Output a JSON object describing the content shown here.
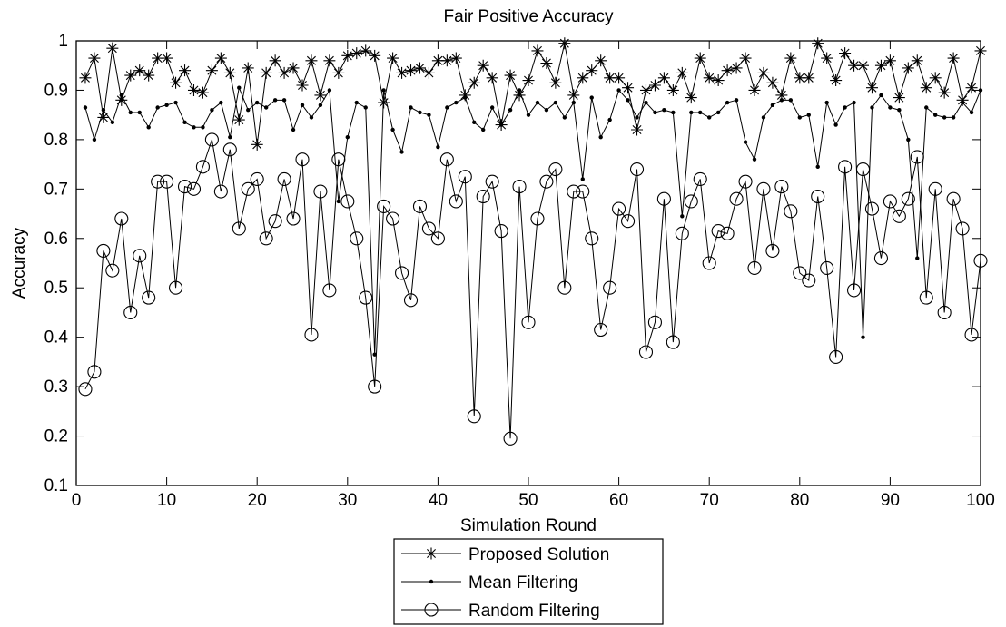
{
  "chart_data": {
    "type": "line",
    "title": "Fair Positive Accuracy",
    "xlabel": "Simulation Round",
    "ylabel": "Accuracy",
    "xlim": [
      0,
      100
    ],
    "ylim": [
      0.1,
      1.0
    ],
    "x_ticks": [
      0,
      10,
      20,
      30,
      40,
      50,
      60,
      70,
      80,
      90,
      100
    ],
    "x_tick_labels": [
      "0",
      "10",
      "20",
      "30",
      "40",
      "50",
      "60",
      "70",
      "80",
      "90",
      "100"
    ],
    "y_ticks": [
      0.1,
      0.2,
      0.3,
      0.4,
      0.5,
      0.6,
      0.7,
      0.8,
      0.9,
      1.0
    ],
    "y_tick_labels": [
      "0.1",
      "0.2",
      "0.3",
      "0.4",
      "0.5",
      "0.6",
      "0.7",
      "0.8",
      "0.9",
      "1"
    ],
    "grid": false,
    "legend_position": "below plot",
    "x": [
      1,
      2,
      3,
      4,
      5,
      6,
      7,
      8,
      9,
      10,
      11,
      12,
      13,
      14,
      15,
      16,
      17,
      18,
      19,
      20,
      21,
      22,
      23,
      24,
      25,
      26,
      27,
      28,
      29,
      30,
      31,
      32,
      33,
      34,
      35,
      36,
      37,
      38,
      39,
      40,
      41,
      42,
      43,
      44,
      45,
      46,
      47,
      48,
      49,
      50,
      51,
      52,
      53,
      54,
      55,
      56,
      57,
      58,
      59,
      60,
      61,
      62,
      63,
      64,
      65,
      66,
      67,
      68,
      69,
      70,
      71,
      72,
      73,
      74,
      75,
      76,
      77,
      78,
      79,
      80,
      81,
      82,
      83,
      84,
      85,
      86,
      87,
      88,
      89,
      90,
      91,
      92,
      93,
      94,
      95,
      96,
      97,
      98,
      99,
      100
    ],
    "series": [
      {
        "name": "Proposed Solution",
        "marker": "star",
        "values": [
          0.925,
          0.965,
          0.845,
          0.985,
          0.88,
          0.93,
          0.94,
          0.93,
          0.965,
          0.965,
          0.915,
          0.94,
          0.9,
          0.895,
          0.94,
          0.965,
          0.935,
          0.84,
          0.945,
          0.79,
          0.935,
          0.96,
          0.935,
          0.945,
          0.91,
          0.96,
          0.89,
          0.96,
          0.935,
          0.97,
          0.975,
          0.98,
          0.97,
          0.875,
          0.965,
          0.935,
          0.94,
          0.945,
          0.935,
          0.96,
          0.96,
          0.965,
          0.89,
          0.915,
          0.95,
          0.925,
          0.83,
          0.93,
          0.89,
          0.92,
          0.98,
          0.955,
          0.915,
          0.995,
          0.89,
          0.925,
          0.94,
          0.96,
          0.925,
          0.925,
          0.905,
          0.82,
          0.9,
          0.91,
          0.925,
          0.9,
          0.935,
          0.885,
          0.965,
          0.925,
          0.92,
          0.94,
          0.945,
          0.965,
          0.9,
          0.935,
          0.915,
          0.89,
          0.965,
          0.925,
          0.925,
          0.995,
          0.965,
          0.92,
          0.975,
          0.95,
          0.95,
          0.905,
          0.95,
          0.96,
          0.885,
          0.945,
          0.96,
          0.905,
          0.925,
          0.895,
          0.965,
          0.88,
          0.905,
          0.98
        ]
      },
      {
        "name": "Mean Filtering",
        "marker": "dot",
        "values": [
          0.865,
          0.8,
          0.86,
          0.835,
          0.89,
          0.855,
          0.855,
          0.825,
          0.865,
          0.87,
          0.875,
          0.835,
          0.825,
          0.825,
          0.86,
          0.875,
          0.805,
          0.905,
          0.86,
          0.875,
          0.865,
          0.88,
          0.88,
          0.82,
          0.87,
          0.845,
          0.87,
          0.9,
          0.675,
          0.805,
          0.875,
          0.865,
          0.365,
          0.9,
          0.82,
          0.775,
          0.865,
          0.855,
          0.85,
          0.785,
          0.865,
          0.875,
          0.885,
          0.835,
          0.82,
          0.865,
          0.83,
          0.86,
          0.9,
          0.85,
          0.875,
          0.86,
          0.875,
          0.845,
          0.875,
          0.72,
          0.885,
          0.805,
          0.84,
          0.9,
          0.88,
          0.845,
          0.875,
          0.855,
          0.86,
          0.855,
          0.645,
          0.855,
          0.855,
          0.845,
          0.855,
          0.875,
          0.88,
          0.795,
          0.76,
          0.845,
          0.87,
          0.88,
          0.88,
          0.845,
          0.85,
          0.745,
          0.875,
          0.83,
          0.865,
          0.875,
          0.4,
          0.865,
          0.89,
          0.865,
          0.86,
          0.8,
          0.56,
          0.865,
          0.85,
          0.845,
          0.845,
          0.875,
          0.855,
          0.9
        ]
      },
      {
        "name": "Random Filtering",
        "marker": "circle",
        "values": [
          0.295,
          0.33,
          0.575,
          0.535,
          0.64,
          0.45,
          0.565,
          0.48,
          0.715,
          0.715,
          0.5,
          0.705,
          0.7,
          0.745,
          0.8,
          0.695,
          0.78,
          0.62,
          0.7,
          0.72,
          0.6,
          0.635,
          0.72,
          0.64,
          0.76,
          0.405,
          0.695,
          0.495,
          0.76,
          0.675,
          0.6,
          0.48,
          0.3,
          0.665,
          0.64,
          0.53,
          0.475,
          0.665,
          0.62,
          0.6,
          0.76,
          0.675,
          0.725,
          0.24,
          0.685,
          0.715,
          0.615,
          0.195,
          0.705,
          0.43,
          0.64,
          0.715,
          0.74,
          0.5,
          0.695,
          0.695,
          0.6,
          0.415,
          0.5,
          0.66,
          0.635,
          0.74,
          0.37,
          0.43,
          0.68,
          0.39,
          0.61,
          0.675,
          0.72,
          0.55,
          0.615,
          0.61,
          0.68,
          0.715,
          0.54,
          0.7,
          0.575,
          0.705,
          0.655,
          0.53,
          0.515,
          0.685,
          0.54,
          0.36,
          0.745,
          0.495,
          0.74,
          0.66,
          0.56,
          0.675,
          0.645,
          0.68,
          0.765,
          0.48,
          0.7,
          0.45,
          0.68,
          0.62,
          0.405,
          0.555
        ]
      }
    ]
  }
}
